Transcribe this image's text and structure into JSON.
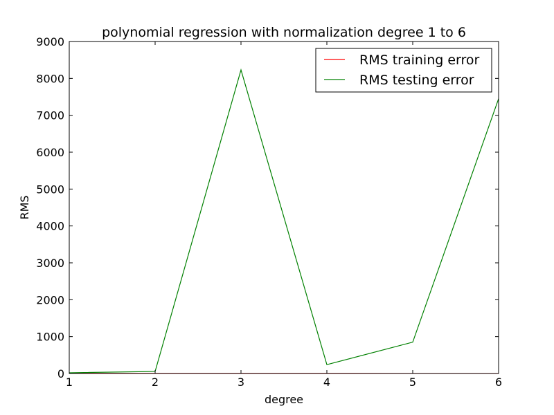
{
  "chart_data": {
    "type": "line",
    "title": "polynomial regression with normalization degree 1 to 6",
    "xlabel": "degree",
    "ylabel": "RMS",
    "x": [
      1,
      2,
      3,
      4,
      5,
      6
    ],
    "xlim": [
      1,
      6
    ],
    "ylim": [
      0,
      9000
    ],
    "x_ticks": [
      "1",
      "2",
      "3",
      "4",
      "5",
      "6"
    ],
    "y_ticks": [
      "0",
      "1000",
      "2000",
      "3000",
      "4000",
      "5000",
      "6000",
      "7000",
      "8000",
      "9000"
    ],
    "grid": false,
    "legend_position": "upper right",
    "series": [
      {
        "name": "RMS training error",
        "color": "#ff0000",
        "values": [
          5,
          3,
          2,
          2,
          1,
          1
        ]
      },
      {
        "name": "RMS testing error",
        "color": "#008000",
        "values": [
          20,
          55,
          8230,
          240,
          850,
          7450
        ]
      }
    ]
  }
}
